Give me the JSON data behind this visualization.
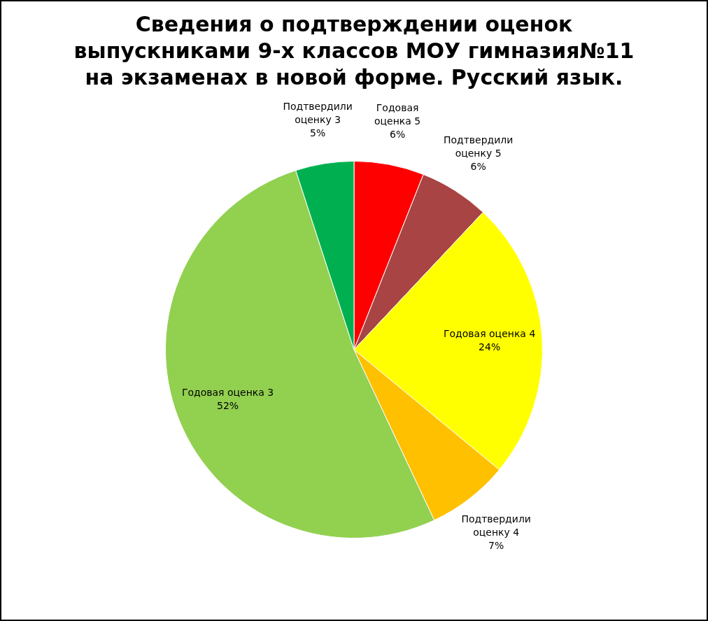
{
  "chart_data": {
    "type": "pie",
    "title": "Сведения о подтверждении оценок выпускниками 9-х классов МОУ гимназия№11 на экзаменах в новой форме. Русский язык.",
    "categories": [
      "Годовая оценка 5",
      "Подтвердили оценку 5",
      "Годовая оценка 4",
      "Подтвердили оценку 4",
      "Годовая оценка 3",
      "Подтвердили оценку 3"
    ],
    "values": [
      6,
      6,
      24,
      7,
      52,
      5
    ],
    "value_labels": [
      "6%",
      "6%",
      "24%",
      "7%",
      "52%",
      "5%"
    ],
    "colors": [
      "#ff0000",
      "#a84444",
      "#ffff00",
      "#ffc000",
      "#92d050",
      "#00b050"
    ],
    "legend": false
  }
}
